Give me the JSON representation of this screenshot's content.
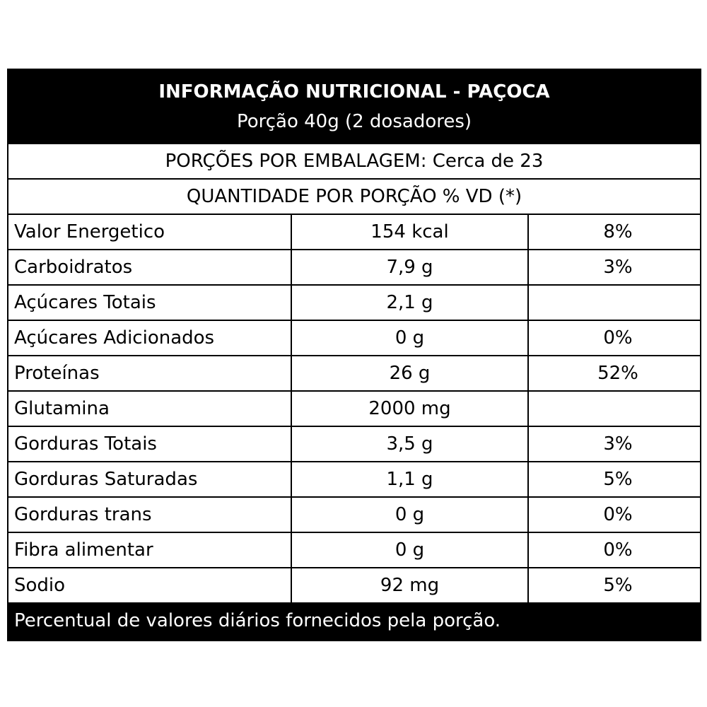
{
  "title": "INFORMAÇÃO NUTRICIONAL - PAÇOCA",
  "serving": "Porção 40g (2 dosadores)",
  "servings_per_package": "PORÇÕES POR EMBALAGEM: Cerca de 23",
  "quantity_header": "QUANTIDADE POR PORÇÃO % VD (*)",
  "rows": [
    {
      "name": "Valor Energetico",
      "amount": "154 kcal",
      "dv": "8%"
    },
    {
      "name": "Carboidratos",
      "amount": "7,9 g",
      "dv": "3%"
    },
    {
      "name": "Açúcares Totais",
      "amount": "2,1 g",
      "dv": ""
    },
    {
      "name": "Açúcares Adicionados",
      "amount": "0 g",
      "dv": "0%"
    },
    {
      "name": "Proteínas",
      "amount": "26 g",
      "dv": "52%"
    },
    {
      "name": "Glutamina",
      "amount": "2000 mg",
      "dv": ""
    },
    {
      "name": "Gorduras Totais",
      "amount": "3,5 g",
      "dv": "3%"
    },
    {
      "name": "Gorduras Saturadas",
      "amount": "1,1 g",
      "dv": "5%"
    },
    {
      "name": "Gorduras trans",
      "amount": "0 g",
      "dv": "0%"
    },
    {
      "name": "Fibra alimentar",
      "amount": "0 g",
      "dv": "0%"
    },
    {
      "name": "Sodio",
      "amount": "92 mg",
      "dv": "5%"
    }
  ],
  "footnote": "Percentual de valores diários fornecidos pela porção."
}
